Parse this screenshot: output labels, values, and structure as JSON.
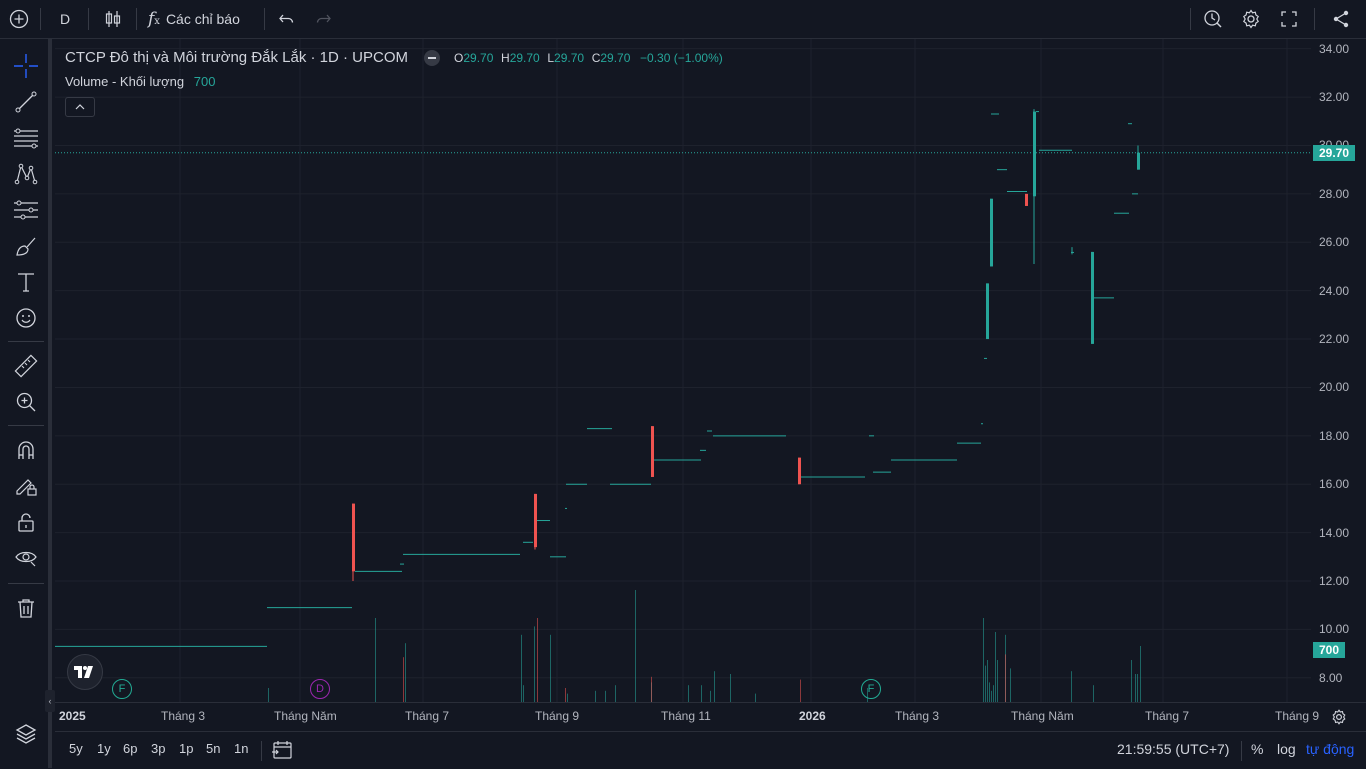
{
  "toolbar": {
    "interval": "D",
    "indicators_label": "Các chỉ báo"
  },
  "legend": {
    "title": "CTCP Đô thị và Môi trường Đắk Lắk · 1D · UPCOM",
    "o_label": "O",
    "o_value": "29.70",
    "h_label": "H",
    "h_value": "29.70",
    "l_label": "L",
    "l_value": "29.70",
    "c_label": "C",
    "c_value": "29.70",
    "change": "−0.30 (−1.00%)",
    "volume_label": "Volume - Khối lượng",
    "volume_value": "700"
  },
  "price_axis": {
    "ticks": [
      "34.00",
      "32.00",
      "30.00",
      "28.00",
      "26.00",
      "24.00",
      "22.00",
      "20.00",
      "18.00",
      "16.00",
      "14.00",
      "12.00",
      "10.00",
      "8.00"
    ],
    "last_price_label": "29.70",
    "last_volume_label": "700"
  },
  "time_axis": {
    "labels": [
      "2025",
      "Tháng 3",
      "Tháng Năm",
      "Tháng 7",
      "Tháng 9",
      "Tháng 11",
      "2026",
      "Tháng 3",
      "Tháng Năm",
      "Tháng 7",
      "Tháng 9"
    ]
  },
  "events": [
    {
      "letter": "F",
      "color": "#22ab94"
    },
    {
      "letter": "D",
      "color": "#9c27b0"
    },
    {
      "letter": "F",
      "color": "#22ab94"
    }
  ],
  "bottom": {
    "ranges": [
      "5y",
      "1y",
      "6p",
      "3p",
      "1p",
      "5n",
      "1n"
    ],
    "clock": "21:59:55 (UTC+7)",
    "percent": "%",
    "log": "log",
    "auto": "tự động"
  },
  "colors": {
    "up": "#26a69a",
    "down": "#ef5350",
    "background": "#131722",
    "grid": "#1e222d",
    "accent": "#2962ff"
  },
  "chart_data": {
    "type": "candlestick",
    "yrange": [
      7,
      34.4
    ],
    "last_price": 29.7,
    "segments": [
      {
        "o": 9.3,
        "h": 9.3,
        "l": 9.3,
        "c": 9.3
      },
      {
        "o": 10.9,
        "h": 10.9,
        "l": 10.9,
        "c": 10.9
      },
      {
        "o": 15.2,
        "h": 15.2,
        "l": 12.0,
        "c": 12.4
      },
      {
        "o": 12.4,
        "h": 12.4,
        "l": 12.4,
        "c": 12.4
      },
      {
        "o": 12.7,
        "h": 12.7,
        "l": 12.7,
        "c": 12.7
      },
      {
        "o": 13.1,
        "h": 13.1,
        "l": 13.1,
        "c": 13.1
      },
      {
        "o": 13.6,
        "h": 13.6,
        "l": 13.6,
        "c": 13.6
      },
      {
        "o": 15.6,
        "h": 15.6,
        "l": 13.3,
        "c": 13.4
      },
      {
        "o": 14.5,
        "h": 14.5,
        "l": 14.5,
        "c": 14.5
      },
      {
        "o": 13.0,
        "h": 13.0,
        "l": 13.0,
        "c": 13.0
      },
      {
        "o": 15.0,
        "h": 15.0,
        "l": 15.0,
        "c": 15.0
      },
      {
        "o": 16.0,
        "h": 16.0,
        "l": 16.0,
        "c": 16.0
      },
      {
        "o": 18.3,
        "h": 18.3,
        "l": 18.3,
        "c": 18.3
      },
      {
        "o": 16.0,
        "h": 16.0,
        "l": 16.0,
        "c": 16.0
      },
      {
        "o": 18.4,
        "h": 18.4,
        "l": 16.3,
        "c": 16.3
      },
      {
        "o": 17.0,
        "h": 17.0,
        "l": 17.0,
        "c": 17.0
      },
      {
        "o": 17.4,
        "h": 17.4,
        "l": 17.4,
        "c": 17.4
      },
      {
        "o": 18.2,
        "h": 18.2,
        "l": 18.2,
        "c": 18.2
      },
      {
        "o": 18.0,
        "h": 18.0,
        "l": 18.0,
        "c": 18.0
      },
      {
        "o": 17.1,
        "h": 17.1,
        "l": 16.0,
        "c": 16.0
      },
      {
        "o": 16.3,
        "h": 16.3,
        "l": 16.3,
        "c": 16.3
      },
      {
        "o": 18.0,
        "h": 18.0,
        "l": 18.0,
        "c": 18.0
      },
      {
        "o": 16.5,
        "h": 16.5,
        "l": 16.5,
        "c": 16.5
      },
      {
        "o": 17.0,
        "h": 17.0,
        "l": 17.0,
        "c": 17.0
      },
      {
        "o": 17.7,
        "h": 17.7,
        "l": 17.7,
        "c": 17.7
      },
      {
        "o": 18.5,
        "h": 18.5,
        "l": 18.5,
        "c": 18.5
      },
      {
        "o": 21.2,
        "h": 21.2,
        "l": 21.2,
        "c": 21.2
      },
      {
        "o": 22.0,
        "h": 24.3,
        "l": 22.0,
        "c": 24.3
      },
      {
        "o": 25.0,
        "h": 27.8,
        "l": 25.0,
        "c": 27.8
      },
      {
        "o": 31.3,
        "h": 31.3,
        "l": 31.3,
        "c": 31.3
      },
      {
        "o": 29.0,
        "h": 29.0,
        "l": 29.0,
        "c": 29.0
      },
      {
        "o": 28.1,
        "h": 28.1,
        "l": 28.1,
        "c": 28.1
      },
      {
        "o": 28.0,
        "h": 28.0,
        "l": 27.5,
        "c": 27.5
      },
      {
        "o": 27.9,
        "h": 31.5,
        "l": 25.1,
        "c": 31.4
      },
      {
        "o": 29.8,
        "h": 29.8,
        "l": 29.8,
        "c": 29.8
      },
      {
        "o": 25.6,
        "h": 25.8,
        "l": 25.5,
        "c": 25.6
      },
      {
        "o": 21.8,
        "h": 25.6,
        "l": 21.8,
        "c": 25.6
      },
      {
        "o": 23.7,
        "h": 23.7,
        "l": 23.7,
        "c": 23.7
      },
      {
        "o": 27.2,
        "h": 27.2,
        "l": 27.2,
        "c": 27.2
      },
      {
        "o": 30.9,
        "h": 30.9,
        "l": 30.9,
        "c": 30.9
      },
      {
        "o": 28.0,
        "h": 28.0,
        "l": 28.0,
        "c": 28.0
      },
      {
        "o": 29.0,
        "h": 30.0,
        "l": 29.0,
        "c": 29.7
      }
    ],
    "volume": [
      {
        "v": 0.5,
        "up": true
      },
      {
        "v": 3.0,
        "up": true
      },
      {
        "v": 1.6,
        "up": false
      },
      {
        "v": 2.1,
        "up": true
      },
      {
        "v": 2.4,
        "up": true
      },
      {
        "v": 0.6,
        "up": true
      },
      {
        "v": 2.4,
        "up": true
      },
      {
        "v": 2.7,
        "up": true
      },
      {
        "v": 3.0,
        "up": false
      },
      {
        "v": 0.5,
        "up": false
      },
      {
        "v": 0.3,
        "up": true
      },
      {
        "v": 4.0,
        "up": true
      },
      {
        "v": 0.6,
        "up": true
      },
      {
        "v": 0.7,
        "up": true
      },
      {
        "v": 0.9,
        "up": false
      },
      {
        "v": 0.6,
        "up": true
      },
      {
        "v": 1.1,
        "up": true
      },
      {
        "v": 0.3,
        "up": true
      },
      {
        "v": 0.8,
        "up": false
      },
      {
        "v": 0.5,
        "up": true
      },
      {
        "v": 1.3,
        "up": true
      },
      {
        "v": 1.5,
        "up": true
      },
      {
        "v": 0.4,
        "up": true
      },
      {
        "v": 0.6,
        "up": true
      },
      {
        "v": 0.7,
        "up": true
      },
      {
        "v": 2.5,
        "up": true
      },
      {
        "v": 3.0,
        "up": true
      },
      {
        "v": 1.5,
        "up": true
      },
      {
        "v": 2.4,
        "up": true
      },
      {
        "v": 1.2,
        "up": true
      },
      {
        "v": 1.1,
        "up": true
      },
      {
        "v": 0.6,
        "up": true
      },
      {
        "v": 1.5,
        "up": true
      },
      {
        "v": 1.0,
        "up": true
      },
      {
        "v": 1.0,
        "up": true
      },
      {
        "v": 1.7,
        "up": false
      },
      {
        "v": 0.4,
        "up": true
      },
      {
        "v": 0.4,
        "up": true
      },
      {
        "v": 0.6,
        "up": true
      },
      {
        "v": 0.4,
        "up": true
      },
      {
        "v": 1.0,
        "up": true
      },
      {
        "v": 2.0,
        "up": true
      }
    ]
  }
}
